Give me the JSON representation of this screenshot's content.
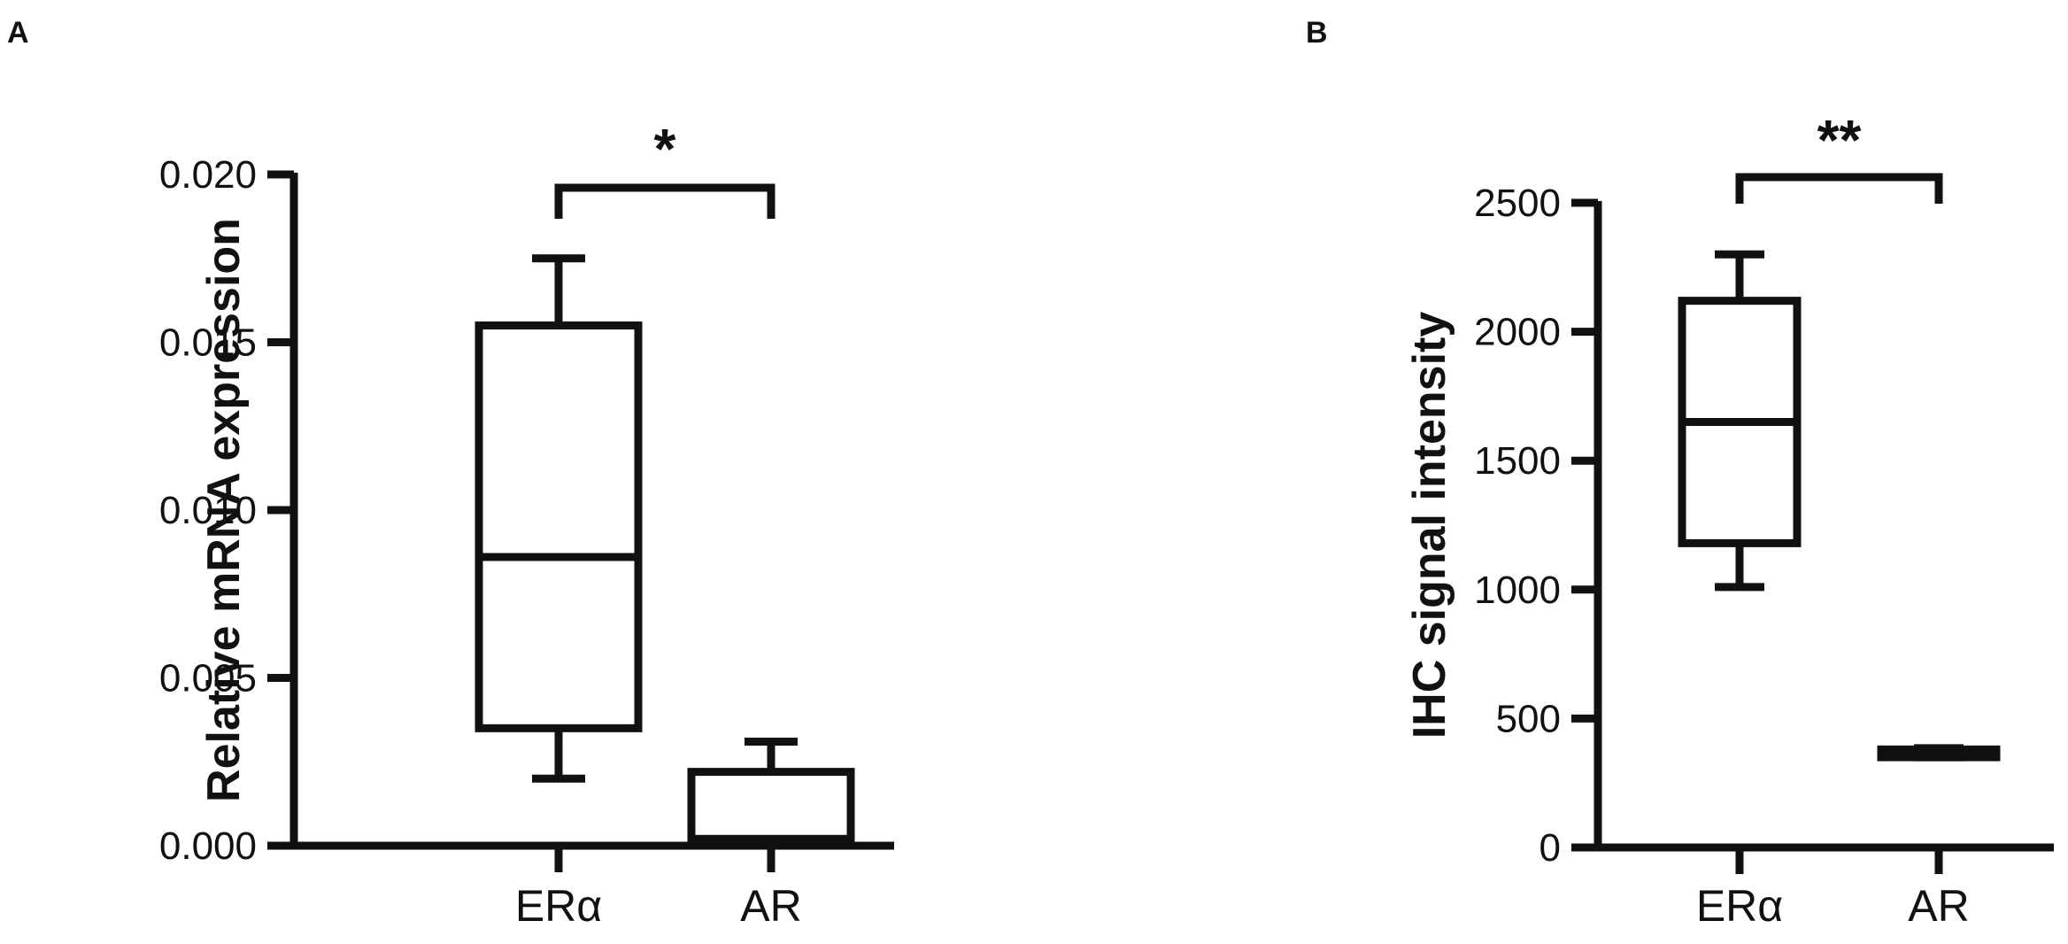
{
  "chart_data": [
    {
      "panel": "A",
      "type": "box",
      "ylabel": "Relative mRNA expression",
      "ylim": [
        0,
        0.02
      ],
      "yticks": [
        "0.000",
        "0.005",
        "0.010",
        "0.015",
        "0.020"
      ],
      "ytick_values": [
        0,
        0.005,
        0.01,
        0.015,
        0.02
      ],
      "categories": [
        "ERα",
        "AR"
      ],
      "boxes": [
        {
          "category": "ERα",
          "min": 0.002,
          "q1": 0.0035,
          "median": 0.0086,
          "q3": 0.0155,
          "max": 0.0175
        },
        {
          "category": "AR",
          "min": 0.0001,
          "q1": 0.0002,
          "median": 0.0002,
          "q3": 0.0022,
          "max": 0.0031
        }
      ],
      "significance": "*",
      "grid": false
    },
    {
      "panel": "B",
      "type": "box",
      "ylabel": "IHC signal intensity",
      "ylim": [
        0,
        2500
      ],
      "yticks": [
        "0",
        "500",
        "1000",
        "1500",
        "2000",
        "2500"
      ],
      "ytick_values": [
        0,
        500,
        1000,
        1500,
        2000,
        2500
      ],
      "categories": [
        "ERα",
        "AR"
      ],
      "boxes": [
        {
          "category": "ERα",
          "min": 1010,
          "q1": 1180,
          "median": 1650,
          "q3": 2120,
          "max": 2300
        },
        {
          "category": "AR",
          "min": 350,
          "q1": 350,
          "median": 365,
          "q3": 380,
          "max": 385
        }
      ],
      "significance": "**",
      "grid": false
    }
  ]
}
